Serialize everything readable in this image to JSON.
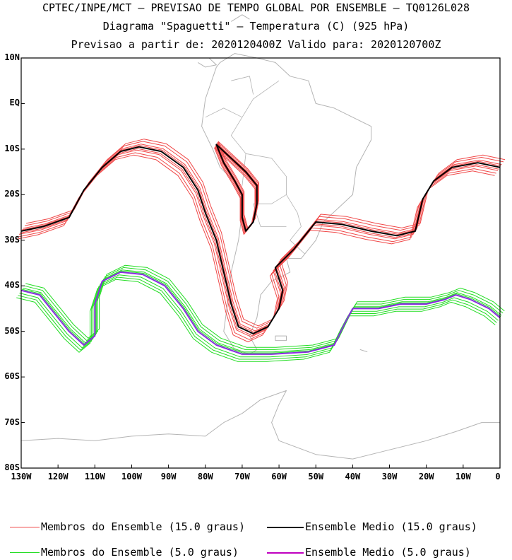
{
  "header": {
    "line1": "CPTEC/INPE/MCT – PREVISAO DE TEMPO GLOBAL POR ENSEMBLE – TQ0126L028",
    "line2": "Diagrama \"Spaguetti\" – Temperatura (C) (925 hPa)",
    "line3": "Previsao a partir de: 2020120400Z  Valido para: 2020120700Z"
  },
  "map": {
    "lat_range": [
      -80,
      10
    ],
    "lon_range": [
      -130,
      0
    ],
    "lat_labels": [
      "10N",
      "EQ",
      "10S",
      "20S",
      "30S",
      "40S",
      "50S",
      "60S",
      "70S",
      "80S"
    ],
    "lon_labels": [
      "130W",
      "120W",
      "110W",
      "100W",
      "90W",
      "80W",
      "70W",
      "60W",
      "50W",
      "40W",
      "30W",
      "20W",
      "10W",
      "0"
    ],
    "colors": {
      "coastline": "#b4b4b4",
      "members15": "#f04848",
      "mean15": "#000000",
      "members5": "#22dd22",
      "mean5": "#8a2be2"
    },
    "contour15_mean": [
      [
        -130,
        -28
      ],
      [
        -124,
        -27
      ],
      [
        -117,
        -25
      ],
      [
        -113,
        -19
      ],
      [
        -108,
        -14
      ],
      [
        -103,
        -10.5
      ],
      [
        -98,
        -9.5
      ],
      [
        -92,
        -10.5
      ],
      [
        -86,
        -14
      ],
      [
        -82,
        -19
      ],
      [
        -80,
        -24
      ],
      [
        -77,
        -30
      ],
      [
        -75,
        -37
      ],
      [
        -73,
        -44
      ],
      [
        -71,
        -49
      ],
      [
        -67,
        -50.5
      ],
      [
        -63,
        -49
      ],
      [
        -60,
        -45
      ],
      [
        -59,
        -41
      ],
      [
        -61,
        -36
      ],
      [
        -56,
        -32
      ],
      [
        -52,
        -28
      ],
      [
        -50,
        -26
      ],
      [
        -43,
        -26.5
      ],
      [
        -35,
        -28
      ],
      [
        -28,
        -29
      ],
      [
        -23,
        -28
      ],
      [
        -21,
        -21
      ],
      [
        -18,
        -17
      ],
      [
        -13,
        -14
      ],
      [
        -6,
        -13
      ],
      [
        0,
        -14
      ]
    ],
    "contour15_mean_inner": [
      [
        -77,
        -9
      ],
      [
        -73,
        -12
      ],
      [
        -69,
        -15
      ],
      [
        -66,
        -18
      ],
      [
        -66,
        -22
      ],
      [
        -67,
        -26
      ],
      [
        -69,
        -28
      ],
      [
        -70,
        -25
      ],
      [
        -70,
        -20
      ],
      [
        -72,
        -17
      ],
      [
        -75,
        -13
      ],
      [
        -77,
        -9
      ]
    ],
    "contour5_mean": [
      [
        -130,
        -41
      ],
      [
        -125,
        -42
      ],
      [
        -121,
        -46
      ],
      [
        -117,
        -50
      ],
      [
        -113,
        -53
      ],
      [
        -110,
        -51
      ],
      [
        -110,
        -44
      ],
      [
        -108,
        -39
      ],
      [
        -103,
        -37
      ],
      [
        -97,
        -37.5
      ],
      [
        -91,
        -40
      ],
      [
        -86,
        -45
      ],
      [
        -82,
        -50
      ],
      [
        -77,
        -53
      ],
      [
        -70,
        -55
      ],
      [
        -62,
        -55
      ],
      [
        -52,
        -54.5
      ],
      [
        -45,
        -53
      ],
      [
        -42,
        -48
      ],
      [
        -40,
        -45
      ],
      [
        -33,
        -45
      ],
      [
        -27,
        -44
      ],
      [
        -20,
        -44
      ],
      [
        -15,
        -43
      ],
      [
        -12,
        -42
      ],
      [
        -8,
        -43
      ],
      [
        -3,
        -45
      ],
      [
        0,
        -47
      ]
    ],
    "members15_offsets": [
      0.6,
      -0.7,
      1.2,
      -1.3,
      0.3,
      -0.4,
      1.7,
      -1.8
    ],
    "members5_offsets": [
      0.5,
      -0.6,
      1.0,
      -1.1,
      1.5,
      -1.6,
      0.25
    ]
  },
  "legend": {
    "members15": "Membros do Ensemble (15.0 graus)",
    "mean15": "Ensemble Medio (15.0 graus)",
    "members5": "Membros do Ensemble (5.0 graus)",
    "mean5": "Ensemble Medio (5.0 graus)"
  }
}
